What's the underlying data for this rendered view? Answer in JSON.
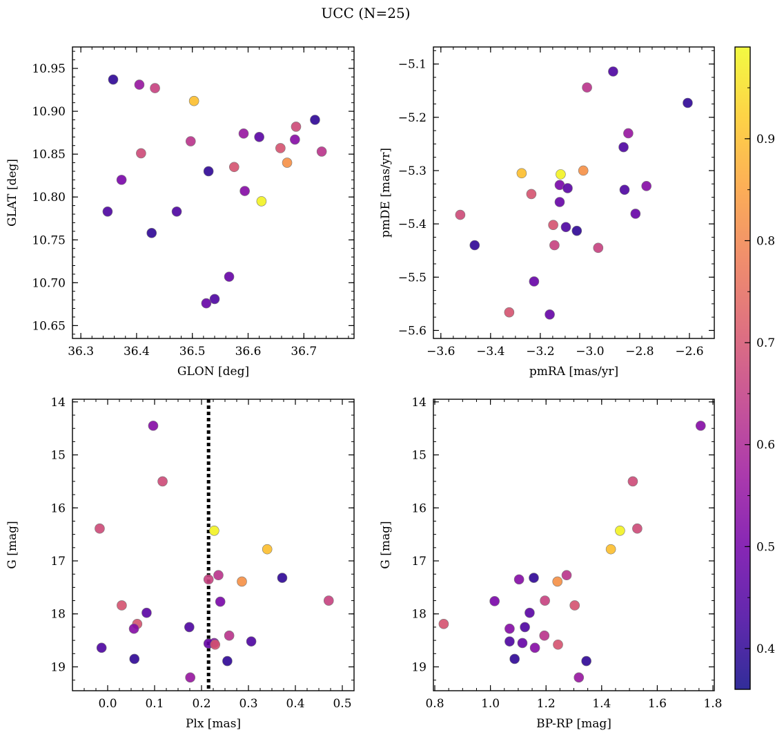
{
  "figure": {
    "title": "UCC (N=25)"
  },
  "colors": {
    "frame": "#000000",
    "marker_edge": "#777777",
    "plx_line": "#000000",
    "colormap": [
      "#0d0887",
      "#46039f",
      "#7201a8",
      "#9c179e",
      "#bd3786",
      "#d8576b",
      "#ed7953",
      "#fb9f3a",
      "#fdca26",
      "#f0f921"
    ]
  },
  "colorbar": {
    "min": 0.36,
    "max": 0.99,
    "ticks": [
      0.4,
      0.5,
      0.6,
      0.7,
      0.8,
      0.9
    ],
    "tick_labels": [
      "0.4",
      "0.5",
      "0.6",
      "0.7",
      "0.8",
      "0.9"
    ],
    "label": ""
  },
  "chart_data": [
    {
      "type": "scatter",
      "name": "position",
      "xlabel": "GLON [deg]",
      "ylabel": "GLAT [deg]",
      "xlim": [
        36.285,
        36.79
      ],
      "ylim": [
        10.635,
        10.975
      ],
      "invert_y": false,
      "xticks": [
        36.3,
        36.4,
        36.5,
        36.6,
        36.7
      ],
      "xtick_labels": [
        "36.3",
        "36.4",
        "36.5",
        "36.6",
        "36.7"
      ],
      "xminor": 0.02,
      "yticks": [
        10.65,
        10.7,
        10.75,
        10.8,
        10.85,
        10.9,
        10.95
      ],
      "ytick_labels": [
        "10.65",
        "10.70",
        "10.75",
        "10.80",
        "10.85",
        "10.90",
        "10.95"
      ],
      "yminor": 0.01,
      "grid": false,
      "points": [
        {
          "x": 36.358,
          "y": 10.937,
          "c": 0.4
        },
        {
          "x": 36.405,
          "y": 10.931,
          "c": 0.56
        },
        {
          "x": 36.433,
          "y": 10.927,
          "c": 0.66
        },
        {
          "x": 36.503,
          "y": 10.912,
          "c": 0.9
        },
        {
          "x": 36.72,
          "y": 10.89,
          "c": 0.4
        },
        {
          "x": 36.686,
          "y": 10.882,
          "c": 0.68
        },
        {
          "x": 36.592,
          "y": 10.874,
          "c": 0.56
        },
        {
          "x": 36.62,
          "y": 10.87,
          "c": 0.46
        },
        {
          "x": 36.684,
          "y": 10.867,
          "c": 0.53
        },
        {
          "x": 36.497,
          "y": 10.865,
          "c": 0.63
        },
        {
          "x": 36.658,
          "y": 10.857,
          "c": 0.7
        },
        {
          "x": 36.732,
          "y": 10.853,
          "c": 0.63
        },
        {
          "x": 36.408,
          "y": 10.851,
          "c": 0.68
        },
        {
          "x": 36.67,
          "y": 10.84,
          "c": 0.82
        },
        {
          "x": 36.575,
          "y": 10.835,
          "c": 0.7
        },
        {
          "x": 36.529,
          "y": 10.83,
          "c": 0.4
        },
        {
          "x": 36.373,
          "y": 10.82,
          "c": 0.51
        },
        {
          "x": 36.594,
          "y": 10.807,
          "c": 0.53
        },
        {
          "x": 36.624,
          "y": 10.795,
          "c": 0.98
        },
        {
          "x": 36.348,
          "y": 10.783,
          "c": 0.44
        },
        {
          "x": 36.472,
          "y": 10.783,
          "c": 0.44
        },
        {
          "x": 36.427,
          "y": 10.758,
          "c": 0.4
        },
        {
          "x": 36.566,
          "y": 10.707,
          "c": 0.48
        },
        {
          "x": 36.54,
          "y": 10.681,
          "c": 0.44
        },
        {
          "x": 36.525,
          "y": 10.676,
          "c": 0.48
        }
      ]
    },
    {
      "type": "scatter",
      "name": "proper-motion",
      "xlabel": "pmRA [mas/yr]",
      "ylabel": "pmDE [mas/yr]",
      "xlim": [
        -3.63,
        -2.5
      ],
      "ylim": [
        -5.615,
        -5.068
      ],
      "invert_y": false,
      "xticks": [
        -3.6,
        -3.4,
        -3.2,
        -3.0,
        -2.8,
        -2.6
      ],
      "xtick_labels": [
        "−3.6",
        "−3.4",
        "−3.2",
        "−3.0",
        "−2.8",
        "−2.6"
      ],
      "xminor": 0.05,
      "yticks": [
        -5.6,
        -5.5,
        -5.4,
        -5.3,
        -5.2,
        -5.1
      ],
      "ytick_labels": [
        "−5.6",
        "−5.5",
        "−5.4",
        "−5.3",
        "−5.2",
        "−5.1"
      ],
      "yminor": 0.025,
      "grid": false,
      "points": [
        {
          "x": -2.907,
          "y": -5.114,
          "c": 0.44
        },
        {
          "x": -3.012,
          "y": -5.144,
          "c": 0.63
        },
        {
          "x": -2.607,
          "y": -5.173,
          "c": 0.4
        },
        {
          "x": -2.846,
          "y": -5.23,
          "c": 0.56
        },
        {
          "x": -2.865,
          "y": -5.256,
          "c": 0.44
        },
        {
          "x": -3.027,
          "y": -5.3,
          "c": 0.82
        },
        {
          "x": -3.275,
          "y": -5.305,
          "c": 0.9
        },
        {
          "x": -3.118,
          "y": -5.307,
          "c": 0.98
        },
        {
          "x": -3.122,
          "y": -5.327,
          "c": 0.51
        },
        {
          "x": -3.09,
          "y": -5.333,
          "c": 0.46
        },
        {
          "x": -2.773,
          "y": -5.329,
          "c": 0.53
        },
        {
          "x": -2.861,
          "y": -5.336,
          "c": 0.44
        },
        {
          "x": -3.236,
          "y": -5.344,
          "c": 0.7
        },
        {
          "x": -3.122,
          "y": -5.359,
          "c": 0.48
        },
        {
          "x": -2.817,
          "y": -5.381,
          "c": 0.48
        },
        {
          "x": -3.522,
          "y": -5.383,
          "c": 0.68
        },
        {
          "x": -3.148,
          "y": -5.402,
          "c": 0.7
        },
        {
          "x": -3.097,
          "y": -5.406,
          "c": 0.44
        },
        {
          "x": -3.053,
          "y": -5.413,
          "c": 0.4
        },
        {
          "x": -3.464,
          "y": -5.44,
          "c": 0.4
        },
        {
          "x": -3.143,
          "y": -5.44,
          "c": 0.66
        },
        {
          "x": -2.967,
          "y": -5.445,
          "c": 0.66
        },
        {
          "x": -3.225,
          "y": -5.508,
          "c": 0.48
        },
        {
          "x": -3.325,
          "y": -5.566,
          "c": 0.7
        },
        {
          "x": -3.162,
          "y": -5.57,
          "c": 0.48
        }
      ]
    },
    {
      "type": "scatter",
      "name": "parallax-magnitude",
      "xlabel": "Plx [mas]",
      "ylabel": "G [mag]",
      "xlim": [
        -0.075,
        0.525
      ],
      "ylim": [
        13.95,
        19.45
      ],
      "invert_y": true,
      "xticks": [
        0.0,
        0.1,
        0.2,
        0.3,
        0.4,
        0.5
      ],
      "xtick_labels": [
        "0.0",
        "0.1",
        "0.2",
        "0.3",
        "0.4",
        "0.5"
      ],
      "xminor": 0.025,
      "yticks": [
        14,
        15,
        16,
        17,
        18,
        19
      ],
      "ytick_labels": [
        "14",
        "15",
        "16",
        "17",
        "18",
        "19"
      ],
      "yminor": 0.25,
      "vline": 0.215,
      "grid": false,
      "points": [
        {
          "x": 0.097,
          "y": 14.45,
          "c": 0.53
        },
        {
          "x": 0.117,
          "y": 15.5,
          "c": 0.68
        },
        {
          "x": -0.017,
          "y": 16.39,
          "c": 0.68
        },
        {
          "x": 0.227,
          "y": 16.43,
          "c": 0.98
        },
        {
          "x": 0.34,
          "y": 16.78,
          "c": 0.9
        },
        {
          "x": 0.372,
          "y": 17.32,
          "c": 0.4
        },
        {
          "x": 0.236,
          "y": 17.27,
          "c": 0.63
        },
        {
          "x": 0.215,
          "y": 17.35,
          "c": 0.66
        },
        {
          "x": 0.286,
          "y": 17.39,
          "c": 0.82
        },
        {
          "x": 0.471,
          "y": 17.75,
          "c": 0.66
        },
        {
          "x": 0.24,
          "y": 17.77,
          "c": 0.51
        },
        {
          "x": 0.03,
          "y": 17.84,
          "c": 0.7
        },
        {
          "x": 0.083,
          "y": 17.98,
          "c": 0.46
        },
        {
          "x": 0.063,
          "y": 18.19,
          "c": 0.7
        },
        {
          "x": 0.174,
          "y": 18.25,
          "c": 0.44
        },
        {
          "x": 0.056,
          "y": 18.28,
          "c": 0.53
        },
        {
          "x": 0.259,
          "y": 18.41,
          "c": 0.63
        },
        {
          "x": 0.306,
          "y": 18.52,
          "c": 0.44
        },
        {
          "x": 0.227,
          "y": 18.55,
          "c": 0.53
        },
        {
          "x": 0.215,
          "y": 18.56,
          "c": 0.48
        },
        {
          "x": 0.229,
          "y": 18.58,
          "c": 0.7
        },
        {
          "x": -0.013,
          "y": 18.64,
          "c": 0.44
        },
        {
          "x": 0.057,
          "y": 18.85,
          "c": 0.4
        },
        {
          "x": 0.255,
          "y": 18.89,
          "c": 0.4
        },
        {
          "x": 0.176,
          "y": 19.2,
          "c": 0.56
        }
      ]
    },
    {
      "type": "scatter",
      "name": "color-magnitude",
      "xlabel": "BP-RP [mag]",
      "ylabel": "G [mag]",
      "xlim": [
        0.795,
        1.805
      ],
      "ylim": [
        13.95,
        19.45
      ],
      "invert_y": true,
      "xticks": [
        0.8,
        1.0,
        1.2,
        1.4,
        1.6,
        1.8
      ],
      "xtick_labels": [
        "0.8",
        "1.0",
        "1.2",
        "1.4",
        "1.6",
        "1.8"
      ],
      "xminor": 0.05,
      "yticks": [
        14,
        15,
        16,
        17,
        18,
        19
      ],
      "ytick_labels": [
        "14",
        "15",
        "16",
        "17",
        "18",
        "19"
      ],
      "yminor": 0.25,
      "grid": false,
      "points": [
        {
          "x": 1.756,
          "y": 14.45,
          "c": 0.53
        },
        {
          "x": 1.512,
          "y": 15.5,
          "c": 0.68
        },
        {
          "x": 1.528,
          "y": 16.39,
          "c": 0.68
        },
        {
          "x": 1.466,
          "y": 16.43,
          "c": 0.98
        },
        {
          "x": 1.433,
          "y": 16.78,
          "c": 0.9
        },
        {
          "x": 1.156,
          "y": 17.32,
          "c": 0.4
        },
        {
          "x": 1.274,
          "y": 17.27,
          "c": 0.63
        },
        {
          "x": 1.103,
          "y": 17.35,
          "c": 0.53
        },
        {
          "x": 1.241,
          "y": 17.39,
          "c": 0.82
        },
        {
          "x": 1.015,
          "y": 17.76,
          "c": 0.51
        },
        {
          "x": 1.196,
          "y": 17.75,
          "c": 0.66
        },
        {
          "x": 1.303,
          "y": 17.84,
          "c": 0.7
        },
        {
          "x": 1.141,
          "y": 17.98,
          "c": 0.46
        },
        {
          "x": 0.832,
          "y": 18.19,
          "c": 0.7
        },
        {
          "x": 1.124,
          "y": 18.25,
          "c": 0.44
        },
        {
          "x": 1.069,
          "y": 18.28,
          "c": 0.53
        },
        {
          "x": 1.194,
          "y": 18.41,
          "c": 0.63
        },
        {
          "x": 1.069,
          "y": 18.52,
          "c": 0.44
        },
        {
          "x": 1.115,
          "y": 18.55,
          "c": 0.48
        },
        {
          "x": 1.243,
          "y": 18.58,
          "c": 0.7
        },
        {
          "x": 1.16,
          "y": 18.64,
          "c": 0.53
        },
        {
          "x": 1.087,
          "y": 18.85,
          "c": 0.4
        },
        {
          "x": 1.345,
          "y": 18.89,
          "c": 0.4
        },
        {
          "x": 1.318,
          "y": 19.2,
          "c": 0.56
        }
      ]
    }
  ]
}
